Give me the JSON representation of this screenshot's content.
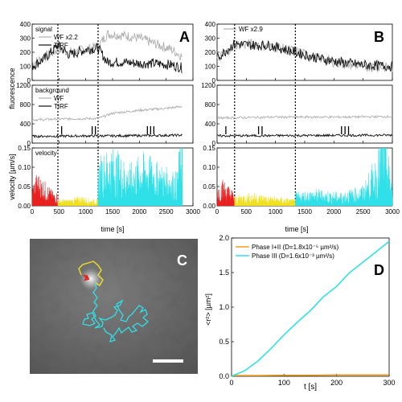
{
  "chart_data": [
    {
      "panel": "A",
      "type": "line",
      "xlabel": "time [s]",
      "xlim": [
        0,
        3000
      ],
      "xticks": [
        0,
        500,
        1000,
        1500,
        2000,
        2500,
        3000
      ],
      "phase_boundaries": [
        480,
        1230
      ],
      "subplots": [
        {
          "name": "signal",
          "ylabel": "fluorescence",
          "ylim": [
            0,
            400
          ],
          "yticks": [
            0,
            100,
            200,
            300,
            400
          ],
          "legend": [
            "WF x2.2",
            "TIRF"
          ],
          "series": [
            {
              "name": "WF x2.2",
              "color": "#b0b0b0",
              "x": [
                0,
                250,
                480,
                700,
                1000,
                1230,
                1400,
                1700,
                2000,
                2300,
                2600,
                2800
              ],
              "values": [
                120,
                170,
                220,
                200,
                220,
                240,
                330,
                320,
                300,
                260,
                220,
                170
              ]
            },
            {
              "name": "TIRF",
              "color": "#111111",
              "x": [
                0,
                250,
                480,
                700,
                1000,
                1230,
                1400,
                1700,
                2000,
                2300,
                2600,
                2800
              ],
              "values": [
                100,
                160,
                250,
                180,
                220,
                230,
                130,
                130,
                120,
                120,
                110,
                90
              ]
            }
          ]
        },
        {
          "name": "background",
          "ylim": [
            0,
            1200
          ],
          "yticks": [
            0,
            400,
            800,
            1200
          ],
          "legend": [
            "WF",
            "TIRF"
          ],
          "series": [
            {
              "name": "WF",
              "color": "#b0b0b0",
              "x": [
                0,
                480,
                1230,
                1500,
                2000,
                2500,
                2800
              ],
              "values": [
                480,
                500,
                510,
                620,
                680,
                720,
                760
              ]
            },
            {
              "name": "TIRF",
              "color": "#111111",
              "x": [
                0,
                480,
                1230,
                1500,
                2000,
                2500,
                2800
              ],
              "values": [
                140,
                145,
                150,
                150,
                155,
                160,
                165
              ]
            }
          ],
          "tick_marks_x": [
            550,
            1120,
            1180,
            2150,
            2210,
            2270
          ]
        },
        {
          "name": "velocity",
          "ylabel": "velocity [µm/s]",
          "ylim": [
            0,
            0.15
          ],
          "yticks": [
            0.0,
            0.05,
            0.1,
            0.15
          ],
          "series": [
            {
              "name": "Phase I",
              "color": "#e82020",
              "x": [
                0,
                100,
                200,
                300,
                400,
                480
              ],
              "values": [
                0.03,
                0.05,
                0.04,
                0.03,
                0.02,
                0.02
              ]
            },
            {
              "name": "Phase II",
              "color": "#f0e020",
              "x": [
                480,
                700,
                900,
                1100,
                1230
              ],
              "values": [
                0.01,
                0.01,
                0.015,
                0.01,
                0.01
              ]
            },
            {
              "name": "Phase III",
              "color": "#30e0e8",
              "x": [
                1230,
                1500,
                1800,
                2100,
                2400,
                2700,
                2800
              ],
              "values": [
                0.07,
                0.09,
                0.06,
                0.08,
                0.06,
                0.05,
                0.14
              ]
            }
          ]
        }
      ]
    },
    {
      "panel": "B",
      "type": "line",
      "xlabel": "time [s]",
      "xlim": [
        0,
        3000
      ],
      "xticks": [
        0,
        500,
        1000,
        1500,
        2000,
        2500,
        3000
      ],
      "phase_boundaries": [
        300,
        1340
      ],
      "subplots": [
        {
          "name": "signal",
          "ylim": [
            0,
            400
          ],
          "yticks": [
            0,
            100,
            200,
            300,
            400
          ],
          "legend": [
            "WF x2.9"
          ],
          "series": [
            {
              "name": "WF x2.9",
              "color": "#b0b0b0",
              "x": [
                0,
                300,
                600,
                900,
                1340,
                1700,
                2100,
                2500,
                3000
              ],
              "values": [
                150,
                250,
                260,
                240,
                210,
                160,
                120,
                100,
                90
              ]
            },
            {
              "name": "TIRF",
              "color": "#111111",
              "x": [
                0,
                300,
                600,
                900,
                1340,
                1700,
                2100,
                2500,
                3000
              ],
              "values": [
                160,
                260,
                250,
                250,
                200,
                160,
                130,
                110,
                100
              ]
            }
          ]
        },
        {
          "name": "background",
          "ylim": [
            0,
            1200
          ],
          "yticks": [
            0,
            400,
            800,
            1200
          ],
          "series": [
            {
              "name": "WF",
              "color": "#b0b0b0",
              "x": [
                0,
                1000,
                2000,
                3000
              ],
              "values": [
                520,
                540,
                540,
                550
              ]
            },
            {
              "name": "TIRF",
              "color": "#111111",
              "x": [
                0,
                1000,
                2000,
                3000
              ],
              "values": [
                150,
                155,
                160,
                165
              ]
            }
          ],
          "tick_marks_x": [
            150,
            710,
            770,
            2130,
            2190,
            2250
          ]
        },
        {
          "name": "velocity",
          "ylim": [
            0,
            0.15
          ],
          "yticks": [
            0.0,
            0.05,
            0.1,
            0.15
          ],
          "series": [
            {
              "name": "Phase I",
              "color": "#e82020",
              "x": [
                0,
                100,
                200,
                300
              ],
              "values": [
                0.03,
                0.04,
                0.03,
                0.02
              ]
            },
            {
              "name": "Phase II",
              "color": "#f0e020",
              "x": [
                300,
                600,
                900,
                1340
              ],
              "values": [
                0.015,
                0.02,
                0.015,
                0.01
              ]
            },
            {
              "name": "Phase III",
              "color": "#30e0e8",
              "x": [
                1340,
                1700,
                2100,
                2500,
                2750,
                2850,
                3000
              ],
              "values": [
                0.02,
                0.025,
                0.02,
                0.03,
                0.08,
                0.14,
                0.03
              ]
            }
          ]
        }
      ]
    },
    {
      "panel": "D",
      "type": "line",
      "xlabel": "t [s]",
      "ylabel": "<r²> [µm²]",
      "xlim": [
        0,
        300
      ],
      "ylim": [
        0,
        2
      ],
      "xticks": [
        0,
        100,
        200,
        300
      ],
      "yticks": [
        0.0,
        0.5,
        1.0,
        1.5,
        2.0
      ],
      "legend": [
        "Phase I+II (D=1.8x10⁻⁵ µm²/s)",
        "Phase III (D=1.6x10⁻³ µm²/s)"
      ],
      "series": [
        {
          "name": "Phase I+II (D=1.8x10⁻⁵ µm²/s)",
          "color": "#f0a020",
          "x": [
            0,
            50,
            100,
            150,
            200,
            250,
            300
          ],
          "values": [
            0.01,
            0.01,
            0.015,
            0.015,
            0.02,
            0.02,
            0.02
          ]
        },
        {
          "name": "Phase III (D=1.6x10⁻³ µm²/s)",
          "color": "#30e0e8",
          "x": [
            0,
            25,
            50,
            75,
            100,
            125,
            150,
            175,
            200,
            225,
            250,
            275,
            300
          ],
          "values": [
            0.0,
            0.08,
            0.22,
            0.4,
            0.6,
            0.78,
            0.95,
            1.15,
            1.3,
            1.5,
            1.65,
            1.8,
            1.95
          ]
        }
      ]
    }
  ],
  "panel_labels": {
    "A": "A",
    "B": "B",
    "C": "C",
    "D": "D"
  },
  "panel_c": {
    "type": "micrograph",
    "label": "C",
    "trajectory_colors": [
      "#e82020",
      "#f0e020",
      "#30e0e8"
    ]
  }
}
